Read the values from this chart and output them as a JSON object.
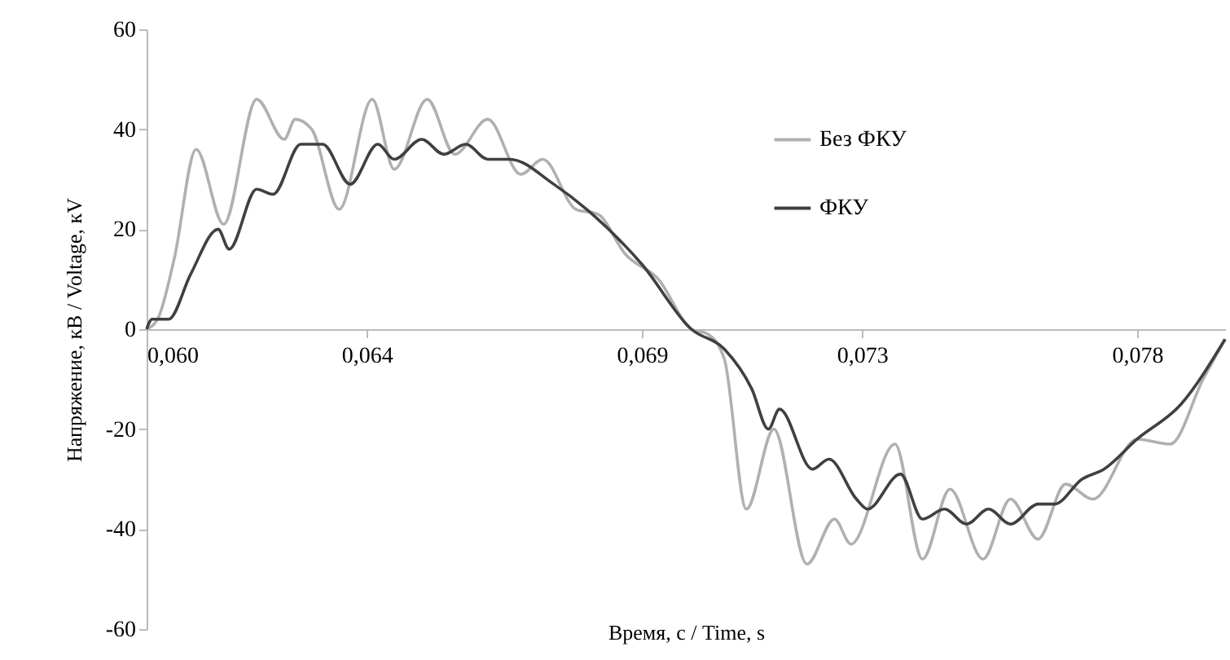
{
  "chart_data": {
    "type": "line",
    "xlabel": "Время, с / Time, s",
    "ylabel": "Напряжение, кВ / Voltage, кV",
    "xlim": [
      0.06,
      0.0796
    ],
    "ylim": [
      -60,
      60
    ],
    "xticks": [
      {
        "value": 0.06,
        "label": "0,060"
      },
      {
        "value": 0.064,
        "label": "0,064"
      },
      {
        "value": 0.069,
        "label": "0,069"
      },
      {
        "value": 0.073,
        "label": "0,073"
      },
      {
        "value": 0.078,
        "label": "0,078"
      }
    ],
    "yticks": [
      -60,
      -40,
      -20,
      0,
      20,
      40,
      60
    ],
    "grid": false,
    "legend": "top right",
    "marker": "none",
    "line_style": "solid",
    "series": [
      {
        "name": "Без ФКУ",
        "color": "#b0b0b0",
        "x": [
          0.06,
          0.0602,
          0.0605,
          0.0609,
          0.0614,
          0.062,
          0.0625,
          0.0627,
          0.063,
          0.0635,
          0.0641,
          0.0645,
          0.0651,
          0.0656,
          0.0662,
          0.0668,
          0.0672,
          0.0678,
          0.0682,
          0.0687,
          0.0693,
          0.0699,
          0.0702,
          0.0705,
          0.0709,
          0.0714,
          0.072,
          0.0725,
          0.0728,
          0.0736,
          0.0741,
          0.0746,
          0.0752,
          0.0757,
          0.0762,
          0.0767,
          0.0772,
          0.078,
          0.0786,
          0.0792,
          0.0796
        ],
        "values": [
          0,
          2,
          14,
          36,
          21,
          46,
          38,
          42,
          40,
          24,
          46,
          32,
          46,
          35,
          42,
          31,
          34,
          24,
          23,
          15,
          10,
          0,
          -1,
          -6,
          -36,
          -20,
          -47,
          -38,
          -43,
          -23,
          -46,
          -32,
          -46,
          -34,
          -42,
          -31,
          -34,
          -22,
          -23,
          -10,
          -2
        ]
      },
      {
        "name": "ФКУ",
        "color": "#404040",
        "x": [
          0.06,
          0.0601,
          0.0604,
          0.0608,
          0.0613,
          0.0615,
          0.062,
          0.0623,
          0.0628,
          0.0632,
          0.0637,
          0.0642,
          0.0645,
          0.065,
          0.0654,
          0.0658,
          0.0662,
          0.0666,
          0.0674,
          0.0681,
          0.069,
          0.0699,
          0.0705,
          0.071,
          0.0713,
          0.0715,
          0.0721,
          0.0724,
          0.0729,
          0.0731,
          0.0737,
          0.0741,
          0.0745,
          0.0749,
          0.0753,
          0.0757,
          0.0762,
          0.0765,
          0.077,
          0.0774,
          0.078,
          0.0788,
          0.0796
        ],
        "values": [
          0,
          2,
          2,
          11,
          20,
          16,
          28,
          27,
          37,
          37,
          29,
          37,
          34,
          38,
          35,
          37,
          34,
          34,
          29,
          23,
          13,
          0,
          -4,
          -12,
          -20,
          -16,
          -28,
          -26,
          -34,
          -36,
          -29,
          -38,
          -36,
          -39,
          -36,
          -39,
          -35,
          -35,
          -30,
          -28,
          -22,
          -15,
          -2
        ]
      }
    ]
  }
}
